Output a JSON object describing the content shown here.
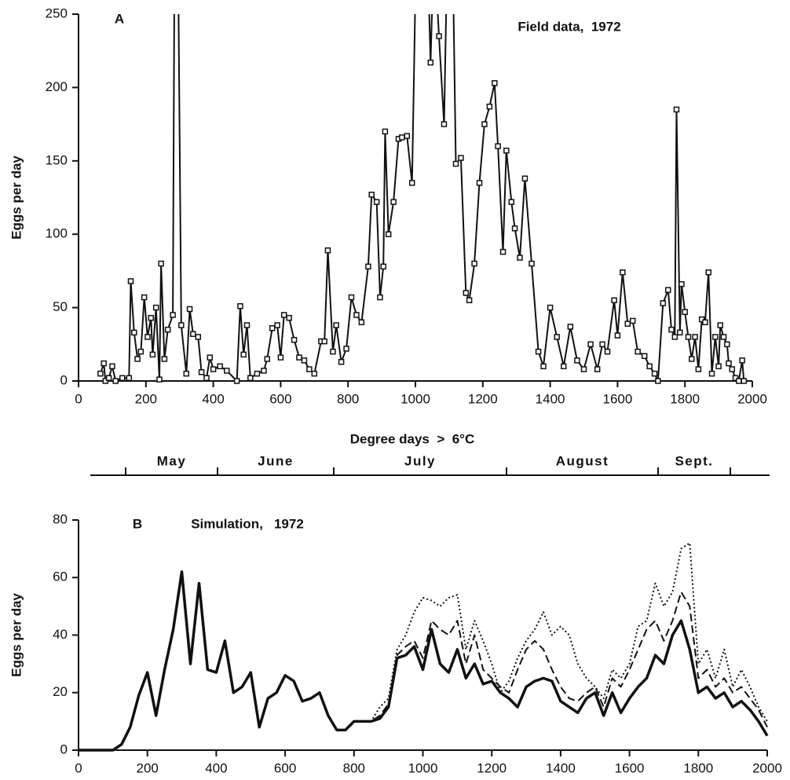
{
  "chart_data": [
    {
      "type": "line",
      "panel_label": "A",
      "title": "Field data,  1972",
      "y_label": "Eggs per day",
      "x_label": "Degree days  >  6°C",
      "markers": true,
      "color": "#111111",
      "xlim": [
        0,
        2000
      ],
      "xticks": [
        0,
        200,
        400,
        600,
        800,
        1000,
        1200,
        1400,
        1600,
        1800,
        2000
      ],
      "ylim": [
        0,
        250
      ],
      "yticks": [
        0,
        50,
        100,
        150,
        200,
        250
      ],
      "x": [
        65,
        75,
        80,
        90,
        100,
        110,
        130,
        150,
        155,
        165,
        175,
        185,
        195,
        205,
        215,
        220,
        230,
        240,
        245,
        255,
        265,
        280,
        285,
        295,
        305,
        320,
        330,
        340,
        355,
        365,
        380,
        390,
        400,
        420,
        440,
        470,
        480,
        490,
        500,
        510,
        530,
        550,
        560,
        575,
        590,
        600,
        610,
        625,
        640,
        655,
        670,
        685,
        700,
        720,
        730,
        740,
        755,
        765,
        780,
        795,
        810,
        825,
        840,
        860,
        870,
        885,
        895,
        905,
        910,
        920,
        935,
        950,
        960,
        975,
        990,
        1000,
        1020,
        1035,
        1045,
        1055,
        1070,
        1085,
        1095,
        1110,
        1120,
        1135,
        1150,
        1160,
        1175,
        1190,
        1205,
        1220,
        1235,
        1245,
        1260,
        1270,
        1285,
        1295,
        1310,
        1325,
        1345,
        1365,
        1380,
        1400,
        1420,
        1440,
        1460,
        1480,
        1500,
        1520,
        1540,
        1555,
        1570,
        1590,
        1600,
        1615,
        1630,
        1645,
        1660,
        1680,
        1695,
        1710,
        1720,
        1735,
        1750,
        1760,
        1770,
        1775,
        1785,
        1790,
        1800,
        1810,
        1820,
        1830,
        1840,
        1850,
        1860,
        1870,
        1880,
        1890,
        1900,
        1905,
        1915,
        1925,
        1930,
        1940,
        1950,
        1960,
        1970,
        1975
      ],
      "values": [
        5,
        12,
        0,
        2,
        10,
        0,
        2,
        2,
        68,
        33,
        15,
        20,
        57,
        30,
        43,
        18,
        50,
        1,
        80,
        15,
        35,
        45,
        300,
        300,
        38,
        5,
        49,
        32,
        30,
        6,
        2,
        16,
        8,
        10,
        7,
        0,
        51,
        18,
        38,
        2,
        5,
        7,
        15,
        36,
        38,
        16,
        45,
        43,
        28,
        16,
        14,
        8,
        5,
        27,
        27,
        89,
        20,
        38,
        13,
        22,
        57,
        45,
        40,
        78,
        127,
        122,
        57,
        78,
        170,
        100,
        122,
        165,
        166,
        167,
        135,
        265,
        300,
        300,
        217,
        300,
        235,
        175,
        300,
        300,
        148,
        152,
        60,
        55,
        80,
        135,
        175,
        187,
        203,
        160,
        88,
        157,
        122,
        104,
        84,
        138,
        80,
        20,
        10,
        50,
        30,
        10,
        37,
        14,
        8,
        25,
        8,
        25,
        20,
        55,
        31,
        74,
        39,
        41,
        20,
        17,
        10,
        5,
        0,
        53,
        62,
        35,
        30,
        185,
        33,
        66,
        47,
        30,
        15,
        30,
        8,
        42,
        40,
        74,
        5,
        30,
        10,
        38,
        30,
        25,
        12,
        8,
        2,
        0,
        14,
        0
      ]
    },
    {
      "type": "line",
      "panel_label": "B",
      "title": "Simulation,   1972",
      "y_label": "Eggs per day",
      "markers": false,
      "xlim": [
        0,
        2000
      ],
      "xticks": [
        0,
        200,
        400,
        600,
        800,
        1000,
        1200,
        1400,
        1600,
        1800,
        2000
      ],
      "ylim": [
        0,
        80
      ],
      "yticks": [
        0,
        20,
        40,
        60,
        80
      ],
      "x": [
        0,
        25,
        50,
        75,
        100,
        125,
        150,
        175,
        200,
        225,
        250,
        275,
        300,
        325,
        350,
        375,
        400,
        425,
        450,
        475,
        500,
        525,
        550,
        575,
        600,
        625,
        650,
        675,
        700,
        725,
        750,
        775,
        800,
        825,
        850,
        875,
        900,
        925,
        950,
        975,
        1000,
        1025,
        1050,
        1075,
        1100,
        1125,
        1150,
        1175,
        1200,
        1225,
        1250,
        1275,
        1300,
        1325,
        1350,
        1375,
        1400,
        1425,
        1450,
        1475,
        1500,
        1525,
        1550,
        1575,
        1600,
        1625,
        1650,
        1675,
        1700,
        1725,
        1750,
        1775,
        1800,
        1825,
        1850,
        1875,
        1900,
        1925,
        1950,
        1975,
        2000
      ],
      "series": [
        {
          "color": "#111111",
          "style": "solid",
          "values": [
            0,
            0,
            0,
            0,
            0,
            2,
            8,
            19,
            27,
            12,
            28,
            42,
            62,
            30,
            58,
            28,
            27,
            38,
            20,
            22,
            27,
            8,
            18,
            20,
            26,
            24,
            17,
            18,
            20,
            12,
            7,
            7,
            10,
            10,
            10,
            11,
            15,
            32,
            33,
            36,
            28,
            42,
            30,
            27,
            35,
            25,
            30,
            23,
            24,
            20,
            18,
            15,
            22,
            24,
            25,
            24,
            17,
            15,
            13,
            18,
            20,
            12,
            20,
            13,
            18,
            22,
            25,
            33,
            30,
            40,
            45,
            35,
            20,
            22,
            18,
            20,
            15,
            17,
            14,
            10,
            5
          ]
        },
        {
          "color": "#111111",
          "style": "dashed",
          "values": [
            0,
            0,
            0,
            0,
            0,
            2,
            8,
            19,
            27,
            12,
            28,
            42,
            62,
            30,
            58,
            28,
            27,
            38,
            20,
            22,
            27,
            8,
            18,
            20,
            26,
            24,
            17,
            18,
            20,
            12,
            7,
            7,
            10,
            10,
            10,
            12,
            16,
            33,
            36,
            38,
            32,
            45,
            42,
            40,
            45,
            30,
            40,
            28,
            25,
            22,
            20,
            28,
            35,
            38,
            35,
            28,
            22,
            18,
            17,
            20,
            22,
            15,
            25,
            22,
            28,
            35,
            42,
            45,
            38,
            45,
            55,
            50,
            25,
            28,
            22,
            25,
            20,
            22,
            18,
            14,
            8
          ]
        },
        {
          "color": "#111111",
          "style": "dotted",
          "values": [
            0,
            0,
            0,
            0,
            0,
            2,
            8,
            19,
            27,
            12,
            28,
            42,
            62,
            30,
            58,
            28,
            27,
            38,
            20,
            22,
            27,
            8,
            18,
            20,
            26,
            24,
            17,
            18,
            20,
            12,
            7,
            7,
            10,
            10,
            10,
            15,
            18,
            35,
            40,
            48,
            53,
            52,
            50,
            53,
            54,
            35,
            45,
            38,
            30,
            20,
            24,
            32,
            38,
            42,
            48,
            40,
            43,
            40,
            30,
            25,
            22,
            18,
            28,
            25,
            30,
            43,
            45,
            58,
            50,
            55,
            70,
            72,
            30,
            35,
            25,
            35,
            22,
            28,
            22,
            15,
            10
          ]
        }
      ]
    }
  ],
  "month_bar": {
    "months": [
      "May",
      "June",
      "July",
      "August",
      "Sept."
    ]
  }
}
